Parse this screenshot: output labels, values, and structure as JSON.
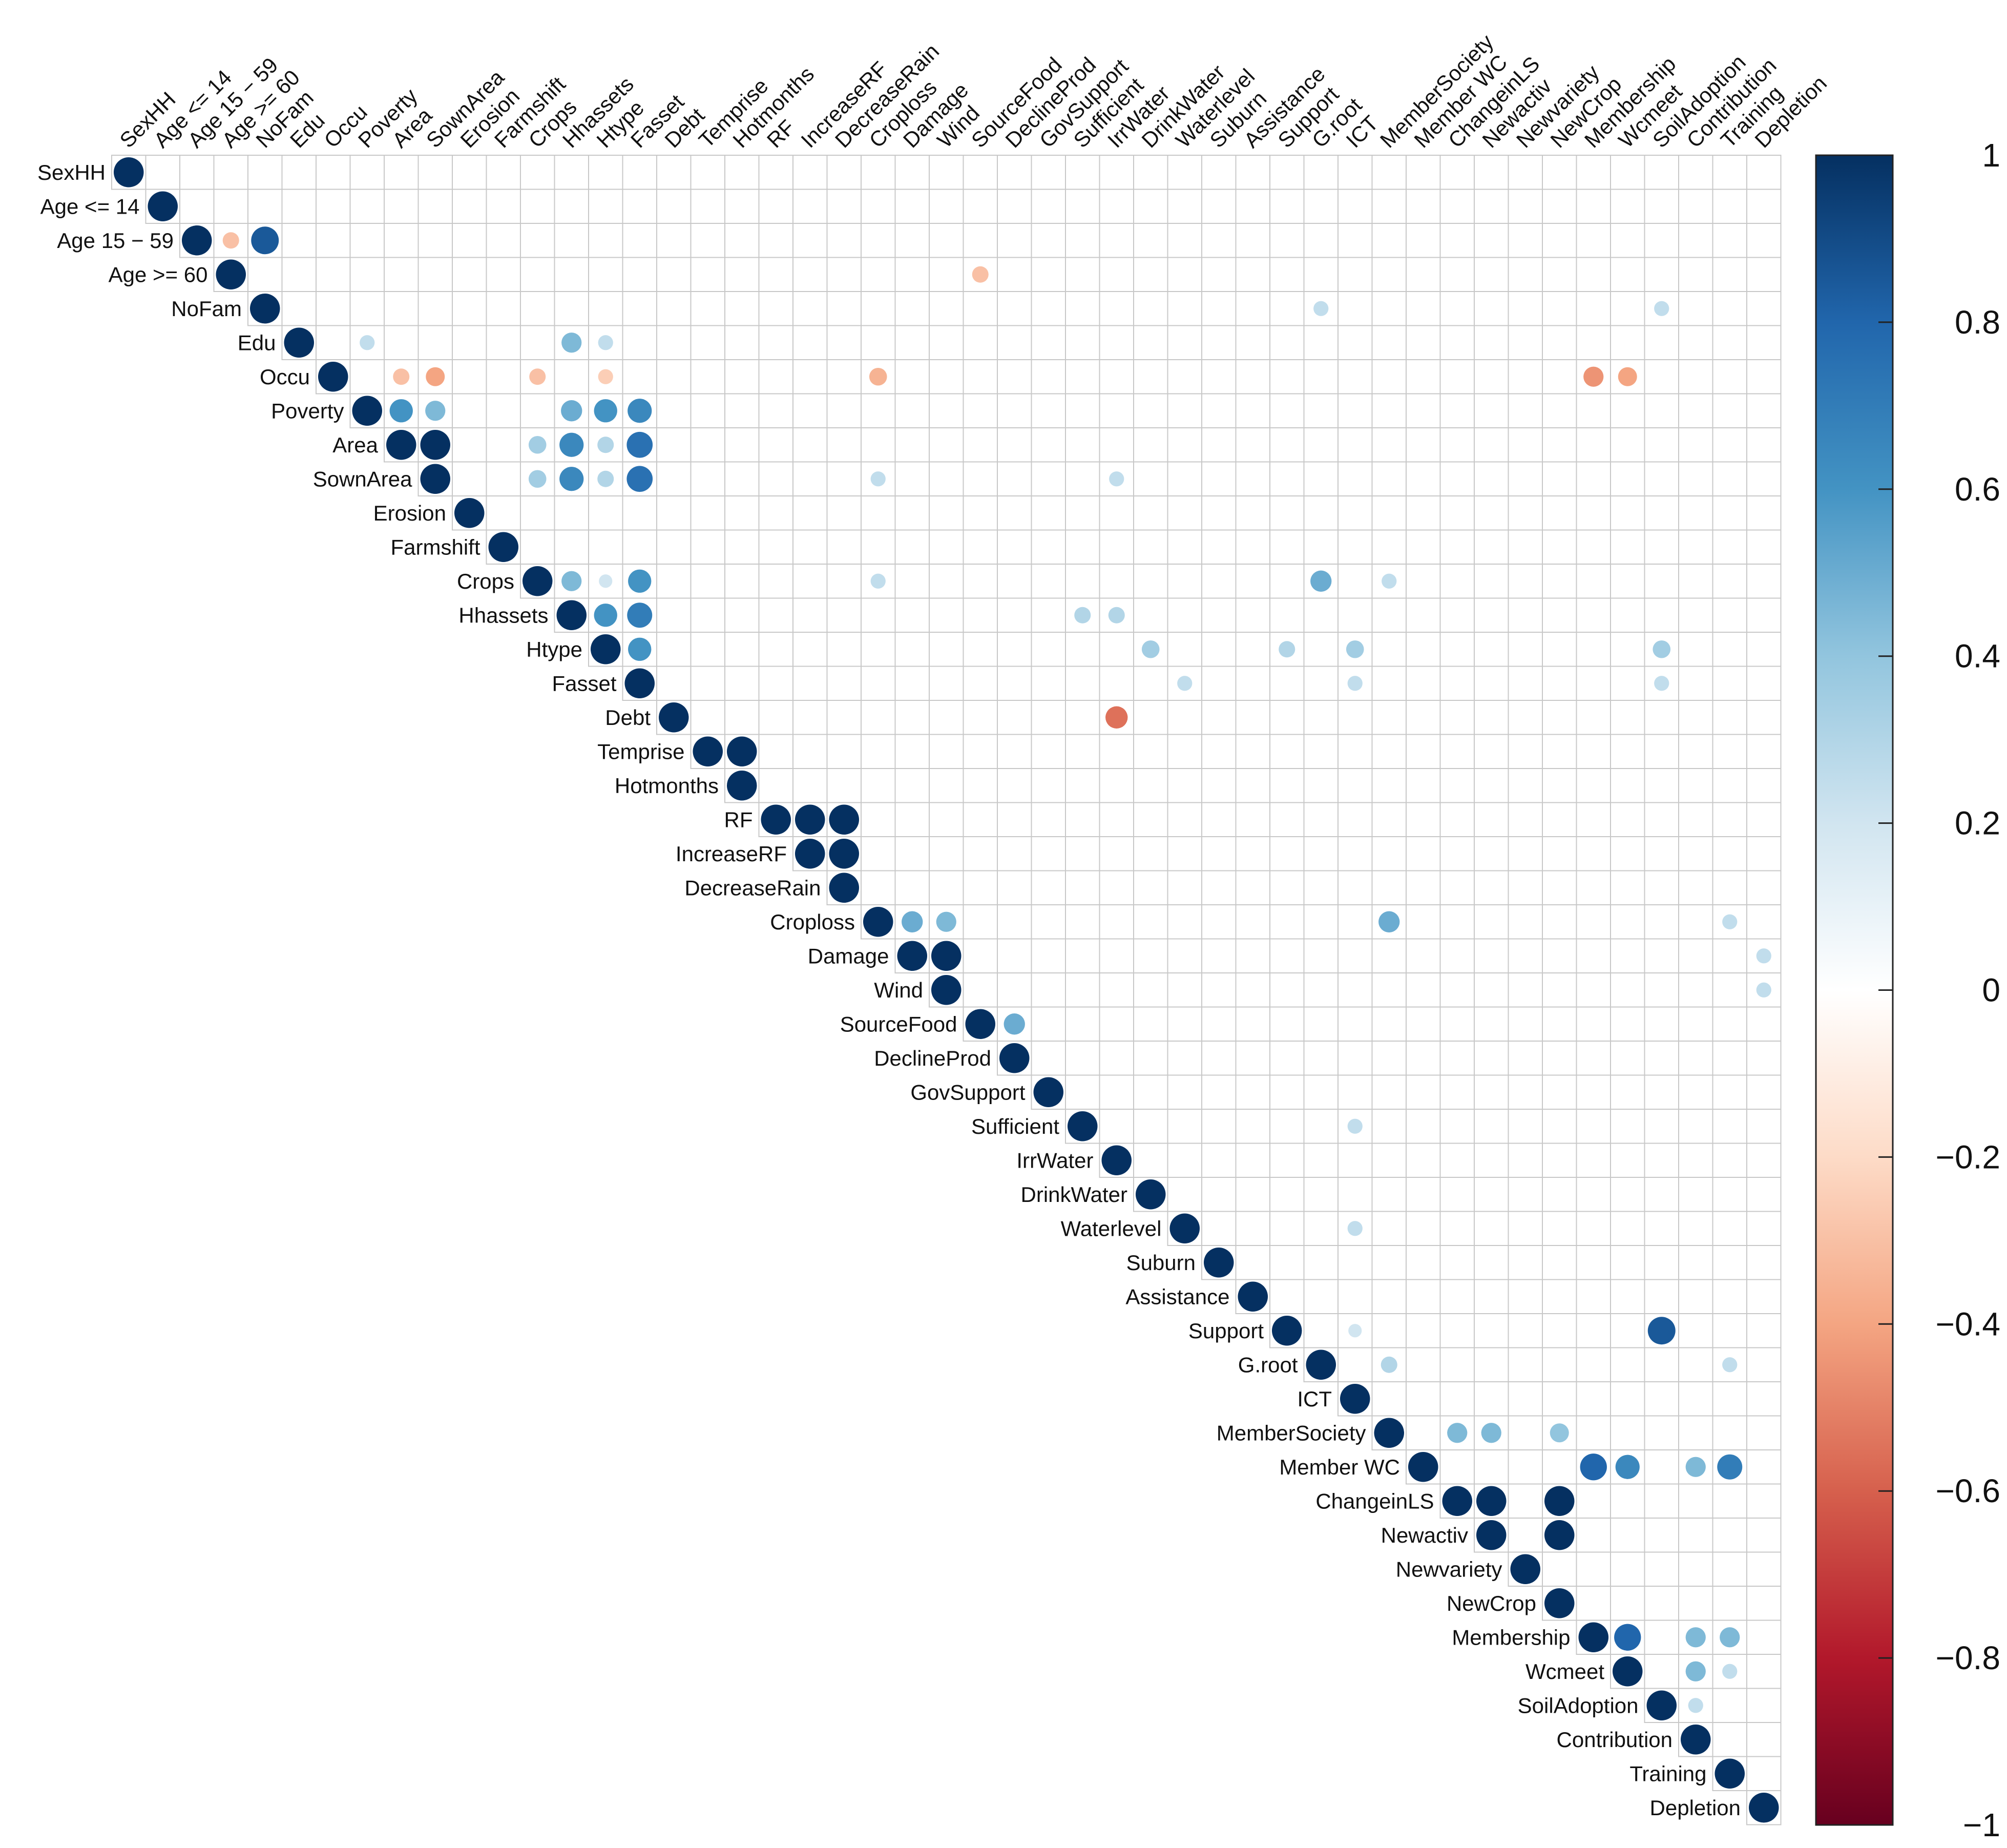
{
  "chart_data": {
    "type": "heatmap",
    "subtype": "correlogram-upper-triangle-circles",
    "title": "",
    "variables": [
      "SexHH",
      "Age <= 14",
      "Age 15 − 59",
      "Age >= 60",
      "NoFam",
      "Edu",
      "Occu",
      "Poverty",
      "Area",
      "SownArea",
      "Erosion",
      "Farmshift",
      "Crops",
      "Hhassets",
      "Htype",
      "Fasset",
      "Debt",
      "Temprise",
      "Hotmonths",
      "RF",
      "IncreaseRF",
      "DecreaseRain",
      "Croploss",
      "Damage",
      "Wind",
      "SourceFood",
      "DeclineProd",
      "GovSupport",
      "Sufficient",
      "IrrWater",
      "DrinkWater",
      "Waterlevel",
      "Suburn",
      "Assistance",
      "Support",
      "G.root",
      "ICT",
      "MemberSociety",
      "Member WC",
      "ChangeinLS",
      "Newactiv",
      "Newvariety",
      "NewCrop",
      "Membership",
      "Wcmeet",
      "SoilAdoption",
      "Contribution",
      "Training",
      "Depletion"
    ],
    "value_range": [
      -1,
      1
    ],
    "colorbar": {
      "ticks": [
        1,
        0.8,
        0.6,
        0.4,
        0.2,
        0,
        -0.2,
        -0.4,
        -0.6,
        -0.8,
        -1
      ],
      "tick_labels": [
        "1",
        "0.8",
        "0.6",
        "0.4",
        "0.2",
        "0",
        "−0.2",
        "−0.4",
        "−0.6",
        "−0.8",
        "−1"
      ],
      "placement": "right"
    },
    "correlations": [
      [
        0,
        0,
        1
      ],
      [
        1,
        1,
        1
      ],
      [
        2,
        2,
        1
      ],
      [
        2,
        3,
        -0.3
      ],
      [
        2,
        4,
        0.85
      ],
      [
        3,
        3,
        1
      ],
      [
        3,
        25,
        -0.3
      ],
      [
        4,
        4,
        1
      ],
      [
        4,
        35,
        0.25
      ],
      [
        4,
        45,
        0.25
      ],
      [
        5,
        5,
        1
      ],
      [
        5,
        7,
        0.25
      ],
      [
        5,
        13,
        0.45
      ],
      [
        5,
        14,
        0.25
      ],
      [
        6,
        6,
        1
      ],
      [
        6,
        8,
        -0.3
      ],
      [
        6,
        9,
        -0.4
      ],
      [
        6,
        12,
        -0.3
      ],
      [
        6,
        14,
        -0.25
      ],
      [
        6,
        22,
        -0.35
      ],
      [
        6,
        43,
        -0.45
      ],
      [
        6,
        44,
        -0.4
      ],
      [
        7,
        7,
        1
      ],
      [
        7,
        8,
        0.6
      ],
      [
        7,
        9,
        0.45
      ],
      [
        7,
        13,
        0.5
      ],
      [
        7,
        14,
        0.6
      ],
      [
        7,
        15,
        0.65
      ],
      [
        8,
        8,
        1
      ],
      [
        8,
        9,
        1
      ],
      [
        8,
        12,
        0.35
      ],
      [
        8,
        13,
        0.65
      ],
      [
        8,
        14,
        0.3
      ],
      [
        8,
        15,
        0.75
      ],
      [
        9,
        9,
        1
      ],
      [
        9,
        12,
        0.35
      ],
      [
        9,
        13,
        0.65
      ],
      [
        9,
        14,
        0.3
      ],
      [
        9,
        15,
        0.75
      ],
      [
        9,
        22,
        0.25
      ],
      [
        9,
        29,
        0.25
      ],
      [
        10,
        10,
        1
      ],
      [
        11,
        11,
        1
      ],
      [
        12,
        12,
        1
      ],
      [
        12,
        13,
        0.45
      ],
      [
        12,
        14,
        0.2
      ],
      [
        12,
        15,
        0.6
      ],
      [
        12,
        22,
        0.25
      ],
      [
        12,
        35,
        0.5
      ],
      [
        12,
        37,
        0.25
      ],
      [
        13,
        13,
        1
      ],
      [
        13,
        14,
        0.6
      ],
      [
        13,
        15,
        0.7
      ],
      [
        13,
        28,
        0.3
      ],
      [
        13,
        29,
        0.3
      ],
      [
        14,
        14,
        1
      ],
      [
        14,
        15,
        0.6
      ],
      [
        14,
        30,
        0.35
      ],
      [
        14,
        34,
        0.3
      ],
      [
        14,
        36,
        0.35
      ],
      [
        14,
        45,
        0.35
      ],
      [
        15,
        15,
        1
      ],
      [
        15,
        31,
        0.25
      ],
      [
        15,
        36,
        0.25
      ],
      [
        15,
        45,
        0.25
      ],
      [
        16,
        16,
        1
      ],
      [
        16,
        29,
        -0.55
      ],
      [
        17,
        17,
        1
      ],
      [
        17,
        18,
        1
      ],
      [
        18,
        18,
        1
      ],
      [
        19,
        19,
        1
      ],
      [
        19,
        20,
        1
      ],
      [
        19,
        21,
        1
      ],
      [
        20,
        20,
        1
      ],
      [
        20,
        21,
        1
      ],
      [
        21,
        21,
        1
      ],
      [
        22,
        22,
        1
      ],
      [
        22,
        23,
        0.5
      ],
      [
        22,
        24,
        0.45
      ],
      [
        22,
        37,
        0.5
      ],
      [
        22,
        47,
        0.25
      ],
      [
        23,
        23,
        1
      ],
      [
        23,
        24,
        1
      ],
      [
        23,
        48,
        0.25
      ],
      [
        24,
        24,
        1
      ],
      [
        24,
        48,
        0.25
      ],
      [
        25,
        25,
        1
      ],
      [
        25,
        26,
        0.5
      ],
      [
        26,
        26,
        1
      ],
      [
        27,
        27,
        1
      ],
      [
        28,
        28,
        1
      ],
      [
        28,
        36,
        0.25
      ],
      [
        29,
        29,
        1
      ],
      [
        30,
        30,
        1
      ],
      [
        31,
        31,
        1
      ],
      [
        31,
        36,
        0.25
      ],
      [
        32,
        32,
        1
      ],
      [
        33,
        33,
        1
      ],
      [
        34,
        34,
        1
      ],
      [
        34,
        36,
        0.2
      ],
      [
        34,
        45,
        0.85
      ],
      [
        35,
        35,
        1
      ],
      [
        35,
        37,
        0.3
      ],
      [
        35,
        47,
        0.25
      ],
      [
        36,
        36,
        1
      ],
      [
        37,
        37,
        1
      ],
      [
        37,
        39,
        0.45
      ],
      [
        37,
        40,
        0.45
      ],
      [
        37,
        42,
        0.4
      ],
      [
        38,
        38,
        1
      ],
      [
        38,
        43,
        0.8
      ],
      [
        38,
        44,
        0.65
      ],
      [
        38,
        46,
        0.45
      ],
      [
        38,
        47,
        0.7
      ],
      [
        39,
        39,
        1
      ],
      [
        39,
        40,
        1
      ],
      [
        39,
        42,
        1
      ],
      [
        40,
        40,
        1
      ],
      [
        40,
        42,
        1
      ],
      [
        41,
        41,
        1
      ],
      [
        42,
        42,
        1
      ],
      [
        43,
        43,
        1
      ],
      [
        43,
        44,
        0.8
      ],
      [
        43,
        46,
        0.45
      ],
      [
        43,
        47,
        0.45
      ],
      [
        44,
        44,
        1
      ],
      [
        44,
        46,
        0.45
      ],
      [
        44,
        47,
        0.25
      ],
      [
        45,
        45,
        1
      ],
      [
        45,
        46,
        0.25
      ],
      [
        46,
        46,
        1
      ],
      [
        47,
        47,
        1
      ],
      [
        48,
        48,
        1
      ]
    ]
  }
}
